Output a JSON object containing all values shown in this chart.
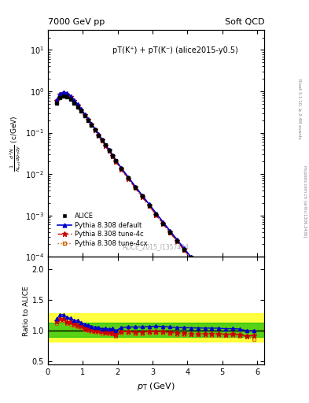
{
  "title_left": "7000 GeV pp",
  "title_right": "Soft QCD",
  "annotation": "pT(K⁺) + pT(K⁻) (alice2015-y0.5)",
  "watermark": "ALICE_2015_I1357424",
  "ylabel_main": "$\\frac{1}{N_{\\rm inel}}\\frac{d^2N}{dp_{\\rm T}dy}$ (c/GeV)",
  "ylabel_ratio": "Ratio to ALICE",
  "xlabel": "$p_{\\rm T}$ (GeV)",
  "right_label": "mcplots.cern.ch [arXiv:1306.3436]",
  "right_label2": "Rivet 3.1.10, ≥ 2.4M events",
  "xlim": [
    0.0,
    6.2
  ],
  "ylim_main": [
    0.0001,
    30
  ],
  "ylim_ratio": [
    0.45,
    2.2
  ],
  "ratio_yticks": [
    0.5,
    1.0,
    1.5,
    2.0
  ],
  "alice_pt": [
    0.25,
    0.35,
    0.45,
    0.55,
    0.65,
    0.75,
    0.85,
    0.95,
    1.05,
    1.15,
    1.25,
    1.35,
    1.45,
    1.55,
    1.65,
    1.75,
    1.85,
    1.95,
    2.1,
    2.3,
    2.5,
    2.7,
    2.9,
    3.1,
    3.3,
    3.5,
    3.7,
    3.9,
    4.1,
    4.3,
    4.5,
    4.7,
    4.9,
    5.1,
    5.3,
    5.5,
    5.7,
    5.9
  ],
  "alice_y": [
    0.52,
    0.7,
    0.76,
    0.74,
    0.64,
    0.53,
    0.42,
    0.33,
    0.258,
    0.2,
    0.154,
    0.117,
    0.088,
    0.067,
    0.05,
    0.038,
    0.028,
    0.0215,
    0.0135,
    0.008,
    0.0048,
    0.0029,
    0.00175,
    0.00106,
    0.00065,
    0.0004,
    0.000248,
    0.000153,
    9.5e-05,
    5.9e-05,
    3.67e-05,
    2.29e-05,
    1.43e-05,
    9e-06,
    5.6e-06,
    3.5e-06,
    2.2e-06,
    1.4e-06
  ],
  "alice_yerr_lo": [
    0.025,
    0.035,
    0.038,
    0.037,
    0.032,
    0.026,
    0.021,
    0.016,
    0.013,
    0.01,
    0.0077,
    0.0058,
    0.0044,
    0.0033,
    0.0025,
    0.0019,
    0.0014,
    0.00107,
    0.00067,
    0.0004,
    0.00024,
    0.000145,
    8.75e-05,
    5.3e-05,
    3.25e-05,
    2e-05,
    1.24e-05,
    7.65e-06,
    4.75e-06,
    2.95e-06,
    1.83e-06,
    1.14e-06,
    7.15e-07,
    4.5e-07,
    2.8e-07,
    1.75e-07,
    1.1e-07,
    7e-08
  ],
  "alice_yerr_hi": [
    0.025,
    0.035,
    0.038,
    0.037,
    0.032,
    0.026,
    0.021,
    0.016,
    0.013,
    0.01,
    0.0077,
    0.0058,
    0.0044,
    0.0033,
    0.0025,
    0.0019,
    0.0014,
    0.00107,
    0.00067,
    0.0004,
    0.00024,
    0.000145,
    8.75e-05,
    5.3e-05,
    3.25e-05,
    2e-05,
    1.24e-05,
    7.65e-06,
    4.75e-06,
    2.95e-06,
    1.83e-06,
    1.14e-06,
    7.15e-07,
    4.5e-07,
    2.8e-07,
    1.75e-07,
    1.1e-07,
    7e-08
  ],
  "pythia_default_pt": [
    0.25,
    0.35,
    0.45,
    0.55,
    0.65,
    0.75,
    0.85,
    0.95,
    1.05,
    1.15,
    1.25,
    1.35,
    1.45,
    1.55,
    1.65,
    1.75,
    1.85,
    1.95,
    2.1,
    2.3,
    2.5,
    2.7,
    2.9,
    3.1,
    3.3,
    3.5,
    3.7,
    3.9,
    4.1,
    4.3,
    4.5,
    4.7,
    4.9,
    5.1,
    5.3,
    5.5,
    5.7,
    5.9
  ],
  "pythia_default_y": [
    0.62,
    0.88,
    0.96,
    0.9,
    0.77,
    0.62,
    0.49,
    0.375,
    0.285,
    0.218,
    0.165,
    0.124,
    0.093,
    0.069,
    0.052,
    0.039,
    0.029,
    0.0215,
    0.0142,
    0.0085,
    0.0051,
    0.00308,
    0.00187,
    0.00114,
    0.000695,
    0.000425,
    0.000261,
    0.000161,
    9.95e-05,
    6.17e-05,
    3.83e-05,
    2.39e-05,
    1.49e-05,
    9.3e-06,
    5.8e-06,
    3.6e-06,
    2.2e-06,
    1.4e-06
  ],
  "pythia_4c_pt": [
    0.25,
    0.35,
    0.45,
    0.55,
    0.65,
    0.75,
    0.85,
    0.95,
    1.05,
    1.15,
    1.25,
    1.35,
    1.45,
    1.55,
    1.65,
    1.75,
    1.85,
    1.95,
    2.1,
    2.3,
    2.5,
    2.7,
    2.9,
    3.1,
    3.3,
    3.5,
    3.7,
    3.9,
    4.1,
    4.3,
    4.5,
    4.7,
    4.9,
    5.1,
    5.3,
    5.5,
    5.7,
    5.9
  ],
  "pythia_4c_y": [
    0.6,
    0.84,
    0.91,
    0.85,
    0.73,
    0.59,
    0.46,
    0.355,
    0.27,
    0.207,
    0.157,
    0.118,
    0.088,
    0.066,
    0.049,
    0.037,
    0.027,
    0.0202,
    0.0133,
    0.0079,
    0.0047,
    0.00285,
    0.00173,
    0.00105,
    0.00064,
    0.00039,
    0.000239,
    0.000147,
    9.1e-05,
    5.63e-05,
    3.5e-05,
    2.18e-05,
    1.36e-05,
    8.5e-06,
    5.3e-06,
    3.3e-06,
    2e-06,
    1.3e-06
  ],
  "pythia_4cx_pt": [
    0.25,
    0.35,
    0.45,
    0.55,
    0.65,
    0.75,
    0.85,
    0.95,
    1.05,
    1.15,
    1.25,
    1.35,
    1.45,
    1.55,
    1.65,
    1.75,
    1.85,
    1.95,
    2.1,
    2.3,
    2.5,
    2.7,
    2.9,
    3.1,
    3.3,
    3.5,
    3.7,
    3.9,
    4.1,
    4.3,
    4.5,
    4.7,
    4.9,
    5.1,
    5.3,
    5.5,
    5.7,
    5.9
  ],
  "pythia_4cx_y": [
    0.58,
    0.82,
    0.89,
    0.83,
    0.71,
    0.57,
    0.45,
    0.346,
    0.263,
    0.201,
    0.152,
    0.115,
    0.086,
    0.064,
    0.048,
    0.036,
    0.0265,
    0.0197,
    0.013,
    0.0077,
    0.0046,
    0.00278,
    0.00169,
    0.00102,
    0.000624,
    0.000381,
    0.000234,
    0.000144,
    8.89e-05,
    5.51e-05,
    3.42e-05,
    2.13e-05,
    1.33e-05,
    8.3e-06,
    5.2e-06,
    3.2e-06,
    2e-06,
    1.2e-06
  ],
  "band_yellow_lo": 0.82,
  "band_yellow_hi": 1.28,
  "band_green_lo": 0.9,
  "band_green_hi": 1.13,
  "color_alice": "#000000",
  "color_default": "#0000cc",
  "color_4c": "#cc0000",
  "color_4cx": "#cc6600",
  "color_band_yellow": "#ffff00",
  "color_band_green": "#00bb00"
}
